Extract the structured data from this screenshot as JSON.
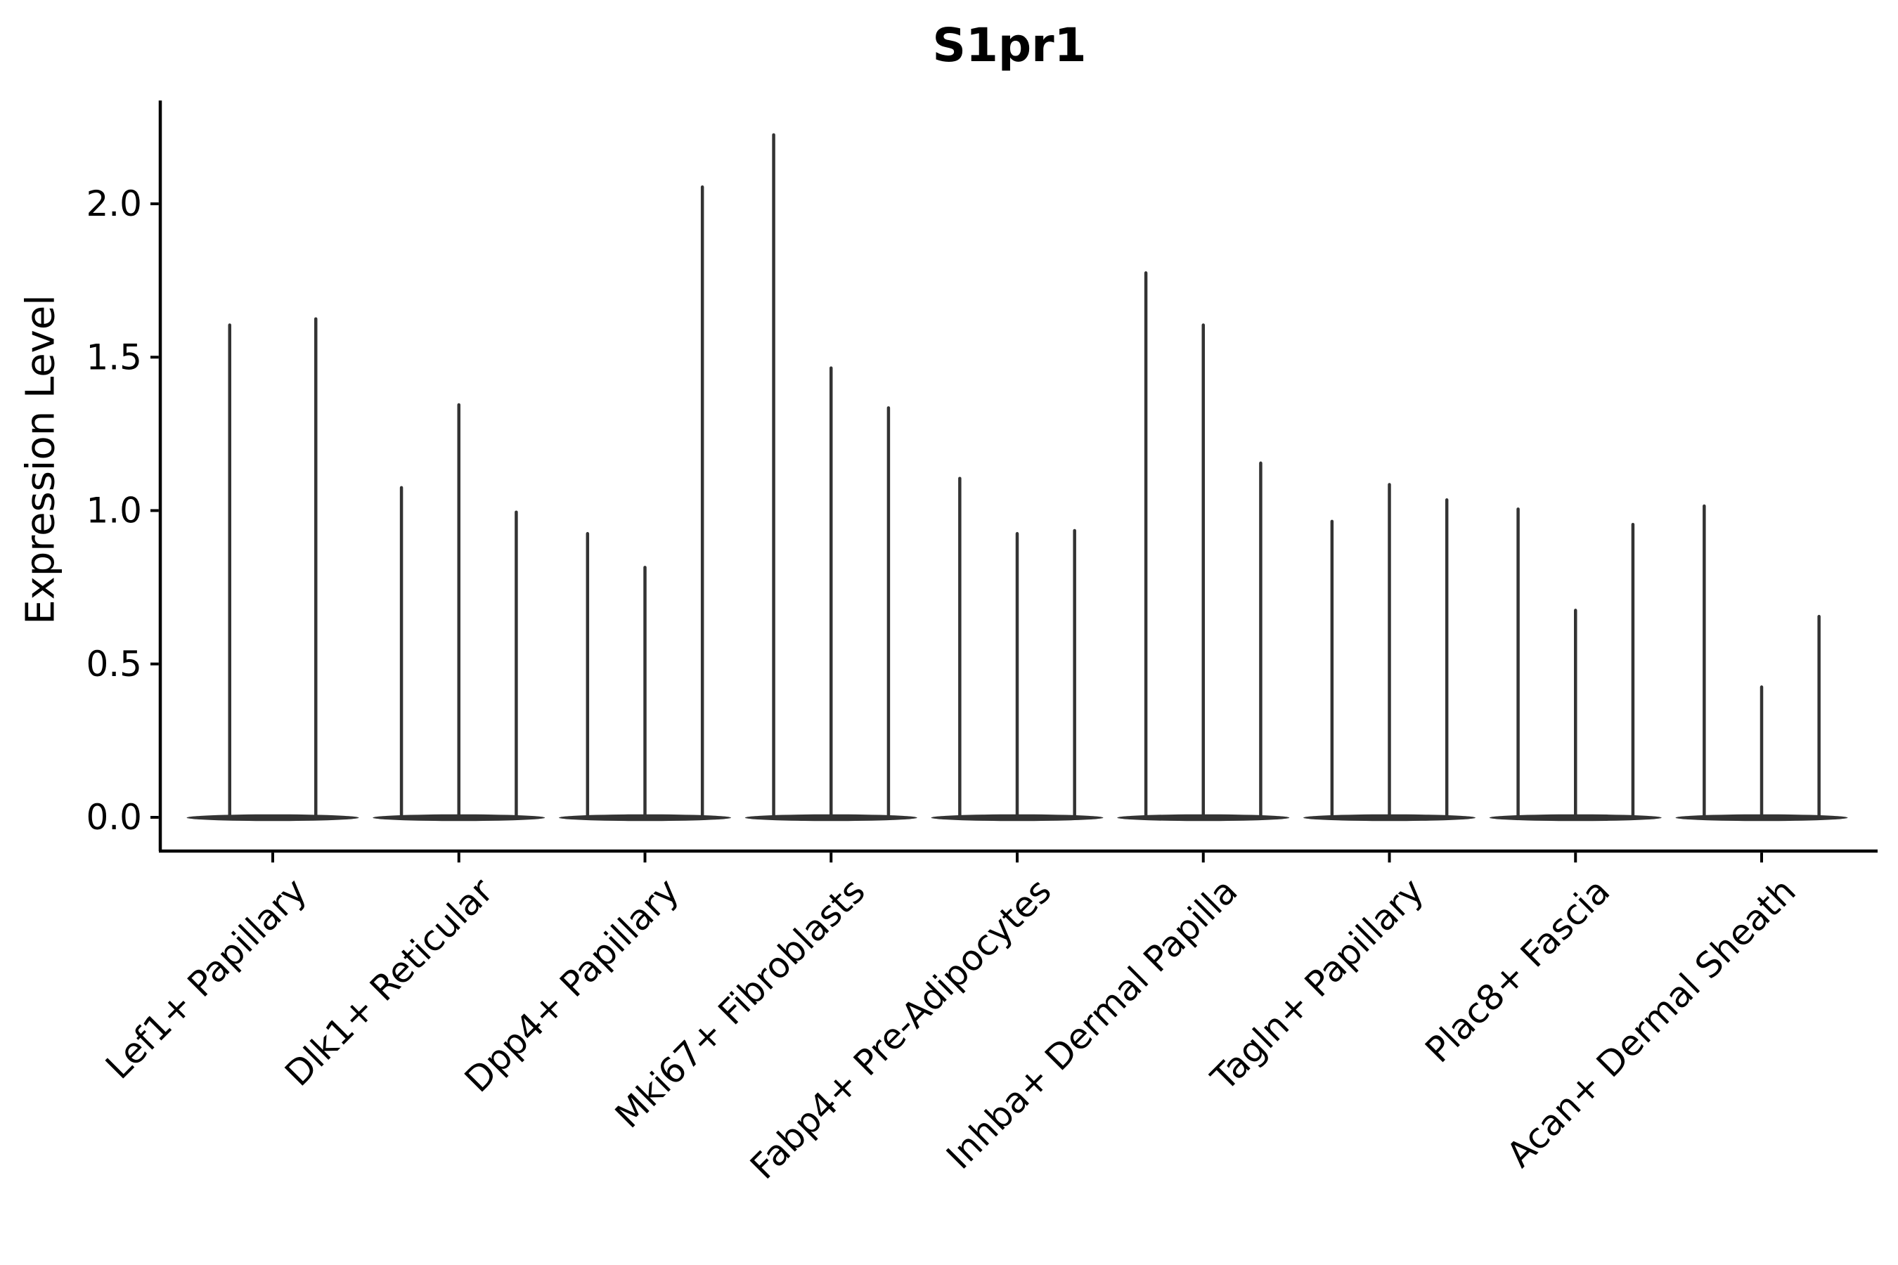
{
  "figure": {
    "title": "S1pr1",
    "ylabel": "Expression Level"
  },
  "chart_data": {
    "type": "violin",
    "title": "S1pr1",
    "xlabel": "",
    "ylabel": "Expression Level",
    "ylim": [
      -0.11,
      2.33
    ],
    "yticks": [
      "0.0",
      "0.5",
      "1.0",
      "1.5",
      "2.0"
    ],
    "ytick_values": [
      0.0,
      0.5,
      1.0,
      1.5,
      2.0
    ],
    "grid": false,
    "legend_position": "none",
    "background": "#ffffff",
    "violin_color": "#333333",
    "axis_color": "#000000",
    "x_tick_label_rotation_deg": 45,
    "categories": [
      "Lef1+ Papillary",
      "Dlk1+ Reticular",
      "Dpp4+ Papillary",
      "Mki67+ Fibroblasts",
      "Fabp4+ Pre-Adipocytes",
      "Inhba+ Dermal Papilla",
      "Tagln+ Papillary",
      "Plac8+ Fascia",
      "Acan+ Dermal Sheath"
    ],
    "groups": [
      {
        "category": "Lef1+ Papillary",
        "violin_max_expression": [
          1.61,
          1.63
        ]
      },
      {
        "category": "Dlk1+ Reticular",
        "violin_max_expression": [
          1.08,
          1.35,
          1.0
        ]
      },
      {
        "category": "Dpp4+ Papillary",
        "violin_max_expression": [
          0.93,
          0.82,
          2.06
        ]
      },
      {
        "category": "Mki67+ Fibroblasts",
        "violin_max_expression": [
          2.23,
          1.47,
          1.34
        ]
      },
      {
        "category": "Fabp4+ Pre-Adipocytes",
        "violin_max_expression": [
          1.11,
          0.93,
          0.94
        ]
      },
      {
        "category": "Inhba+ Dermal Papilla",
        "violin_max_expression": [
          1.78,
          1.61,
          1.16
        ]
      },
      {
        "category": "Tagln+ Papillary",
        "violin_max_expression": [
          0.97,
          1.09,
          1.04
        ]
      },
      {
        "category": "Plac8+ Fascia",
        "violin_max_expression": [
          1.01,
          0.68,
          0.96
        ]
      },
      {
        "category": "Acan+ Dermal Sheath",
        "violin_max_expression": [
          1.02,
          0.43,
          0.66
        ]
      }
    ],
    "notes": "Each category shows thin max-density violins over a flat base at expression 0"
  }
}
